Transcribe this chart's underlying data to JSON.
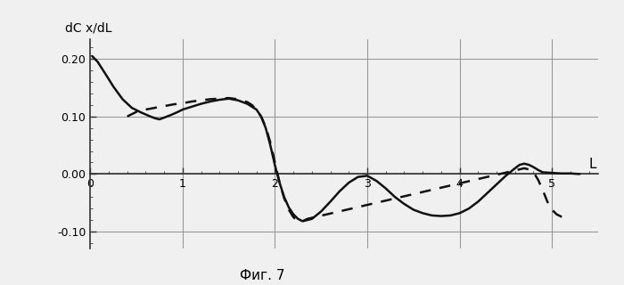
{
  "ylabel": "dC x/dL",
  "xlabel": "L",
  "caption": "Фиг. 7",
  "xlim": [
    0,
    5.5
  ],
  "ylim": [
    -0.13,
    0.235
  ],
  "yticks": [
    -0.1,
    0.0,
    0.1,
    0.2
  ],
  "xticks": [
    0,
    1,
    2,
    3,
    4,
    5
  ],
  "grid_color": "#999999",
  "bg_color": "#f0f0f0",
  "line_color": "#111111",
  "figsize": [
    7.0,
    3.2
  ],
  "dpi": 100,
  "solid_x": [
    0.02,
    0.05,
    0.08,
    0.12,
    0.18,
    0.25,
    0.35,
    0.45,
    0.55,
    0.65,
    0.7,
    0.75,
    0.8,
    0.88,
    0.95,
    1.0,
    1.1,
    1.2,
    1.3,
    1.4,
    1.5,
    1.6,
    1.7,
    1.8,
    1.85,
    1.9,
    1.95,
    2.0,
    2.05,
    2.1,
    2.15,
    2.2,
    2.25,
    2.3,
    2.4,
    2.5,
    2.6,
    2.7,
    2.8,
    2.9,
    3.0,
    3.1,
    3.2,
    3.3,
    3.4,
    3.5,
    3.6,
    3.7,
    3.8,
    3.9,
    4.0,
    4.1,
    4.2,
    4.3,
    4.4,
    4.5,
    4.6,
    4.65,
    4.7,
    4.75,
    4.8,
    4.85,
    4.9,
    5.0,
    5.1,
    5.2,
    5.3
  ],
  "solid_y": [
    0.205,
    0.2,
    0.195,
    0.185,
    0.17,
    0.152,
    0.13,
    0.115,
    0.107,
    0.1,
    0.097,
    0.095,
    0.098,
    0.103,
    0.108,
    0.112,
    0.117,
    0.122,
    0.126,
    0.129,
    0.131,
    0.128,
    0.122,
    0.112,
    0.1,
    0.08,
    0.05,
    0.015,
    -0.015,
    -0.04,
    -0.058,
    -0.07,
    -0.078,
    -0.082,
    -0.078,
    -0.065,
    -0.048,
    -0.03,
    -0.015,
    -0.005,
    -0.003,
    -0.012,
    -0.025,
    -0.04,
    -0.052,
    -0.062,
    -0.068,
    -0.072,
    -0.073,
    -0.072,
    -0.068,
    -0.06,
    -0.048,
    -0.033,
    -0.018,
    -0.003,
    0.01,
    0.016,
    0.018,
    0.016,
    0.012,
    0.007,
    0.003,
    0.002,
    0.001,
    0.001,
    0.0
  ],
  "dashed_x": [
    0.4,
    0.5,
    0.6,
    0.7,
    0.75,
    0.8,
    0.9,
    1.0,
    1.1,
    1.2,
    1.3,
    1.4,
    1.5,
    1.6,
    1.7,
    1.75,
    1.8,
    1.85,
    1.9,
    1.95,
    2.0,
    2.05,
    2.1,
    2.15,
    2.2,
    2.25,
    2.3,
    2.35,
    4.7,
    4.75,
    4.8,
    4.85,
    4.9,
    4.95,
    5.0,
    5.05,
    5.1,
    5.15,
    5.2
  ],
  "dashed_y": [
    0.1,
    0.108,
    0.112,
    0.115,
    0.117,
    0.118,
    0.121,
    0.123,
    0.126,
    0.128,
    0.13,
    0.131,
    0.132,
    0.13,
    0.125,
    0.12,
    0.112,
    0.1,
    0.082,
    0.055,
    0.02,
    -0.015,
    -0.042,
    -0.062,
    -0.075,
    -0.082,
    -0.082,
    -0.078,
    0.01,
    0.008,
    0.003,
    -0.01,
    -0.028,
    -0.048,
    -0.062,
    -0.07,
    -0.074,
    -0.076,
    -0.076
  ]
}
